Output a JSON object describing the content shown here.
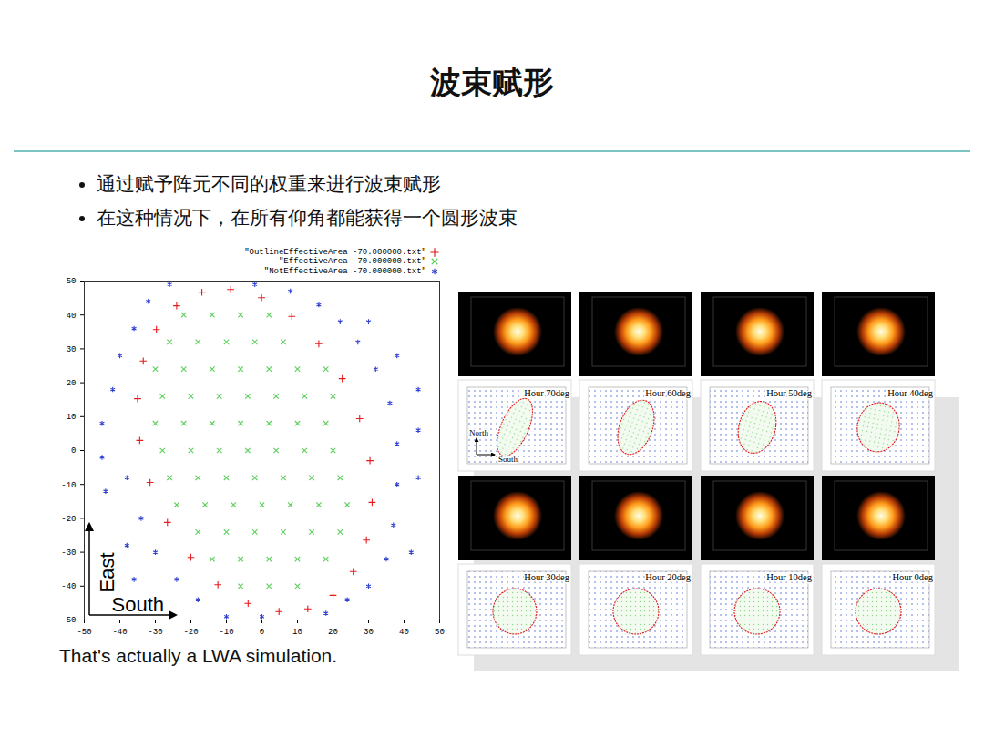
{
  "title": "波束赋形",
  "bullets": [
    "通过赋予阵元不同的权重来进行波束赋形",
    "在这种情况下，在所有仰角都能获得一个圆形波束"
  ],
  "caption": "That's actually a LWA simulation.",
  "chart_data": {
    "type": "scatter",
    "xlim": [
      -50,
      50
    ],
    "ylim": [
      -50,
      50
    ],
    "xticks": [
      -50,
      -40,
      -30,
      -20,
      -10,
      0,
      10,
      20,
      30,
      40,
      50
    ],
    "yticks": [
      -50,
      -40,
      -30,
      -20,
      -10,
      0,
      10,
      20,
      30,
      40,
      50
    ],
    "legend": "top-right",
    "annotations": [
      "East",
      "South"
    ],
    "series": [
      {
        "name": "\"OutlineEffectiveArea -70.000000.txt\"",
        "color": "#e41a1c",
        "marker": "plus",
        "x": [
          12.9,
          20.0,
          25.7,
          29.4,
          31.0,
          30.4,
          27.5,
          22.6,
          16.0,
          8.4,
          -0.1,
          -8.8,
          -16.9,
          -24.0,
          -29.7,
          -33.4,
          -35.0,
          -34.4,
          -31.5,
          -26.6,
          -20.0,
          -12.4,
          -3.9,
          4.8
        ],
        "y": [
          -46.7,
          -42.7,
          -35.7,
          -26.4,
          -15.3,
          -3.0,
          9.4,
          21.2,
          31.5,
          39.6,
          45.1,
          47.5,
          46.7,
          42.7,
          35.7,
          26.4,
          15.3,
          3.0,
          -9.4,
          -21.2,
          -31.5,
          -39.6,
          -45.1,
          -47.5
        ]
      },
      {
        "name": "\"EffectiveArea -70.000000.txt\"",
        "color": "#5ccf5c",
        "marker": "times",
        "x": [
          -22,
          -14,
          -6,
          2,
          -26,
          -18,
          -10,
          -2,
          6,
          -30,
          -22,
          -14,
          -6,
          2,
          10,
          18,
          -28,
          -20,
          -12,
          -4,
          4,
          12,
          20,
          -30,
          -22,
          -14,
          -6,
          2,
          10,
          18,
          -28,
          -20,
          -12,
          -4,
          4,
          12,
          20,
          -26,
          -18,
          -10,
          -2,
          6,
          14,
          22,
          -24,
          -16,
          -8,
          0,
          8,
          16,
          24,
          -18,
          -10,
          -2,
          6,
          14,
          22,
          -14,
          -6,
          2,
          10,
          18,
          -6,
          2,
          10
        ],
        "y": [
          40,
          40,
          40,
          40,
          32,
          32,
          32,
          32,
          32,
          24,
          24,
          24,
          24,
          24,
          24,
          24,
          16,
          16,
          16,
          16,
          16,
          16,
          16,
          8,
          8,
          8,
          8,
          8,
          8,
          8,
          0,
          0,
          0,
          0,
          0,
          0,
          0,
          -8,
          -8,
          -8,
          -8,
          -8,
          -8,
          -8,
          -16,
          -16,
          -16,
          -16,
          -16,
          -16,
          -16,
          -24,
          -24,
          -24,
          -24,
          -24,
          -24,
          -32,
          -32,
          -32,
          -32,
          -32,
          -40,
          -40,
          -40
        ]
      },
      {
        "name": "\"NotEffectiveArea -70.000000.txt\"",
        "color": "#2f3fd0",
        "marker": "asterisk",
        "x": [
          -45,
          -45,
          -44,
          -42,
          -40,
          -38,
          -38,
          -36,
          -34,
          -32,
          -30,
          -26,
          -24,
          -36,
          -18,
          -10,
          0,
          18,
          24,
          30,
          35,
          37,
          38,
          38,
          36,
          32,
          27,
          22,
          16,
          8,
          -2,
          30,
          38,
          44,
          44,
          44,
          42
        ],
        "y": [
          -2,
          8,
          -12,
          18,
          28,
          -8,
          -28,
          36,
          -20,
          44,
          -30,
          49,
          -38,
          -38,
          -44,
          -49,
          -49,
          -48,
          -44,
          -40,
          -32,
          -22,
          -10,
          2,
          14,
          24,
          32,
          38,
          43,
          47,
          49,
          38,
          28,
          18,
          6,
          -8,
          -30
        ]
      }
    ]
  },
  "panels": [
    {
      "label": "Hour 70deg",
      "north_label": "North",
      "south_label": "South"
    },
    {
      "label": "Hour 60deg"
    },
    {
      "label": "Hour 50deg"
    },
    {
      "label": "Hour 40deg"
    },
    {
      "label": "Hour 30deg"
    },
    {
      "label": "Hour 20deg"
    },
    {
      "label": "Hour 10deg"
    },
    {
      "label": "Hour 0deg"
    }
  ]
}
